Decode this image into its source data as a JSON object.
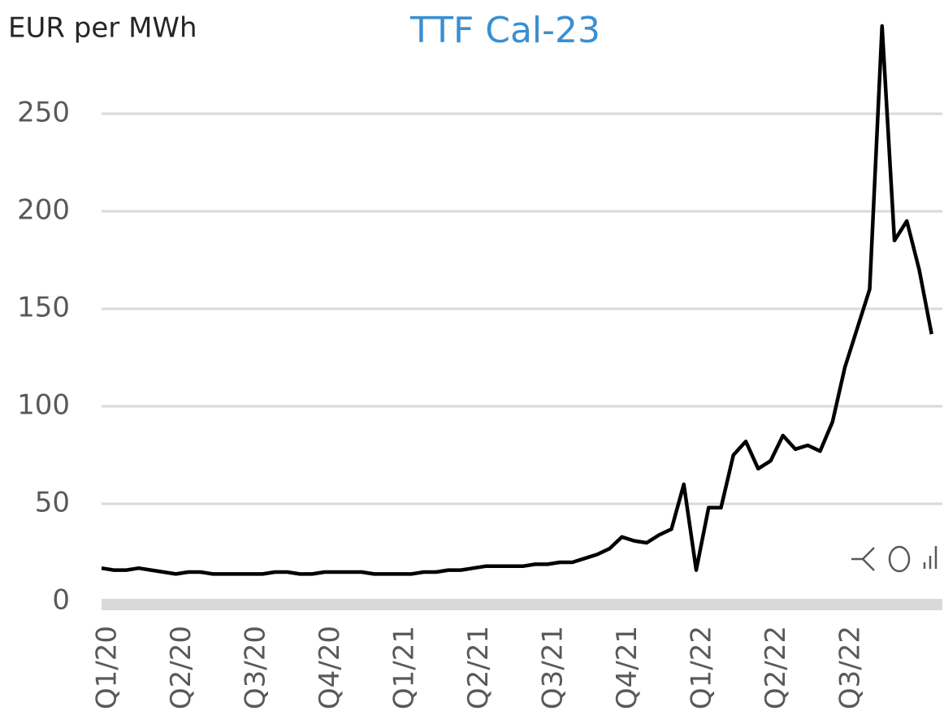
{
  "chart_data": {
    "type": "line",
    "title": "TTF Cal-23",
    "y_label": "EUR per MWh",
    "categories": [
      "Q1/20",
      null,
      null,
      null,
      null,
      null,
      "Q2/20",
      null,
      null,
      null,
      null,
      null,
      "Q3/20",
      null,
      null,
      null,
      null,
      null,
      "Q4/20",
      null,
      null,
      null,
      null,
      null,
      "Q1/21",
      null,
      null,
      null,
      null,
      null,
      "Q2/21",
      null,
      null,
      null,
      null,
      null,
      "Q3/21",
      null,
      null,
      null,
      null,
      null,
      "Q4/21",
      null,
      null,
      null,
      null,
      null,
      "Q1/22",
      null,
      null,
      null,
      null,
      null,
      "Q2/22",
      null,
      null,
      null,
      null,
      null,
      "Q3/22",
      null,
      null,
      null,
      null,
      null,
      null,
      null
    ],
    "series": [
      {
        "name": "TTF Cal-23",
        "color": "#000000",
        "values": [
          17,
          16,
          16,
          17,
          16,
          15,
          14,
          15,
          15,
          14,
          14,
          14,
          14,
          14,
          15,
          15,
          14,
          14,
          15,
          15,
          15,
          15,
          14,
          14,
          14,
          14,
          15,
          15,
          16,
          16,
          17,
          18,
          18,
          18,
          18,
          19,
          19,
          20,
          20,
          22,
          24,
          27,
          33,
          31,
          30,
          34,
          37,
          60,
          16,
          48,
          48,
          75,
          82,
          68,
          72,
          85,
          78,
          80,
          77,
          92,
          120,
          140,
          160,
          295,
          185,
          195,
          170,
          137
        ]
      }
    ],
    "ylim": [
      0,
      300
    ],
    "yticks": [
      0,
      50,
      100,
      150,
      200,
      250
    ],
    "grid": true
  }
}
